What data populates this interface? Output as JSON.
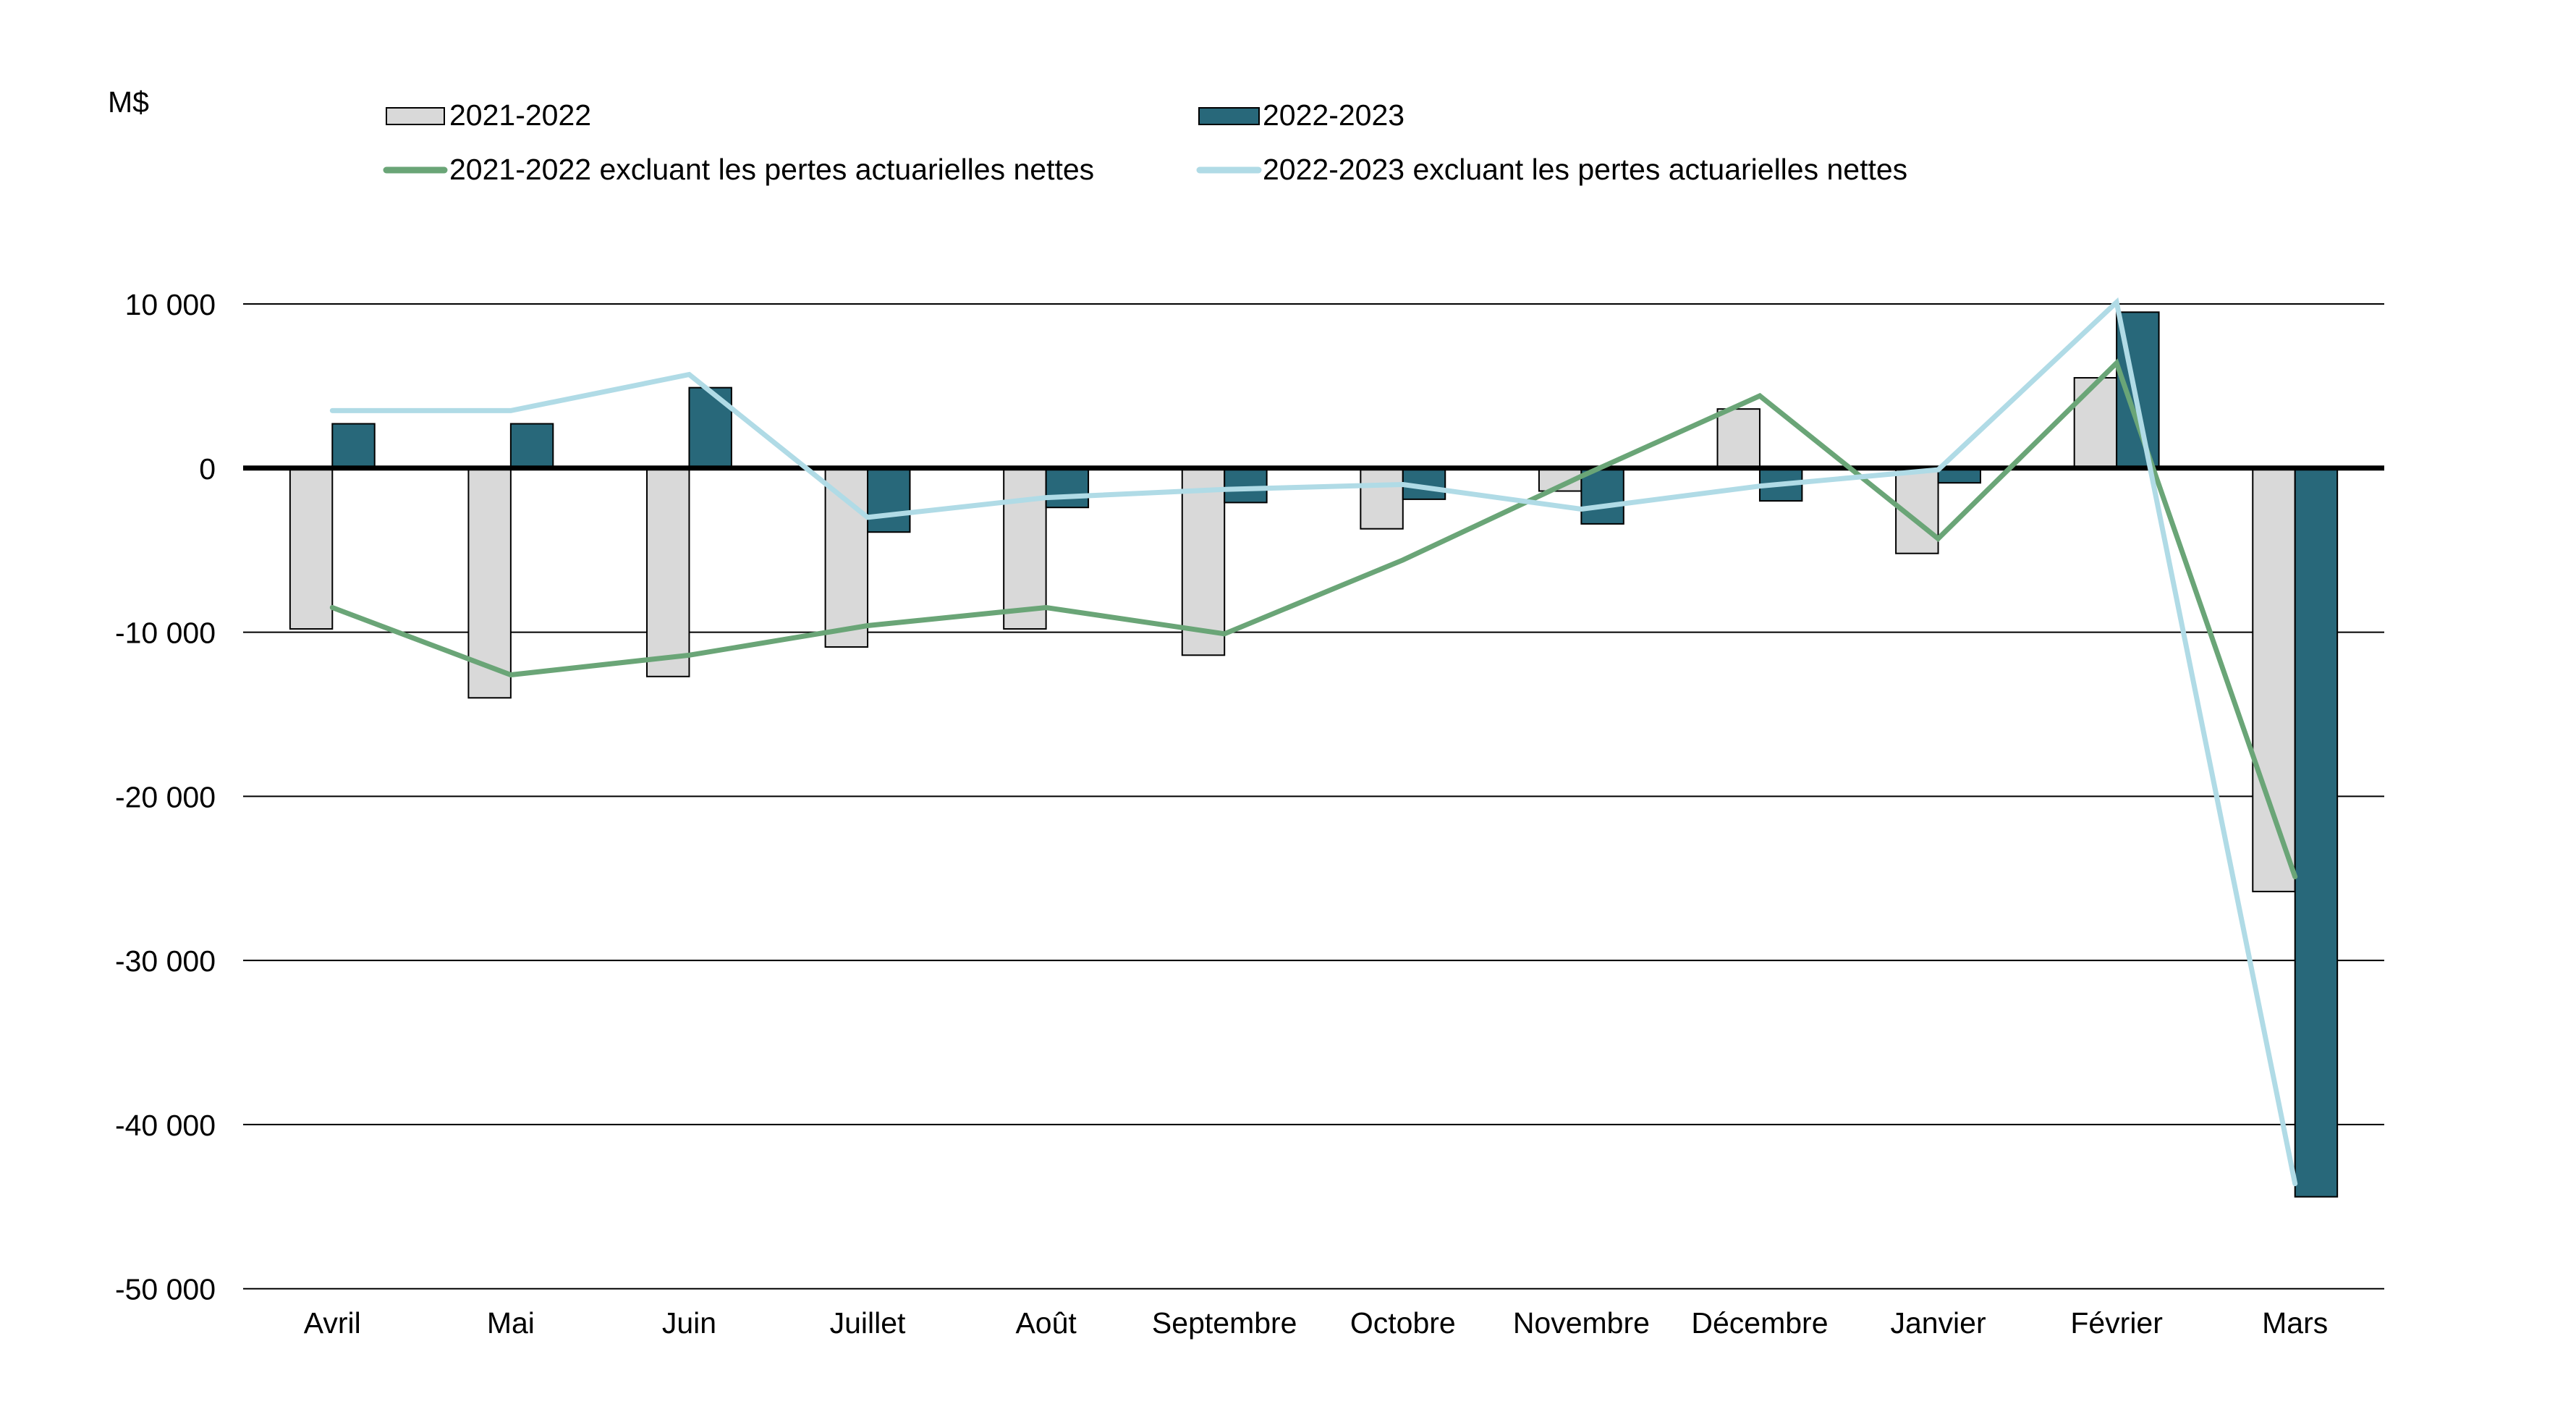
{
  "chart_data": {
    "type": "bar",
    "title": "",
    "xlabel": "",
    "ylabel": "M$",
    "ylim": [
      -50000,
      10000
    ],
    "yticks": [
      10000,
      0,
      -10000,
      -20000,
      -30000,
      -40000,
      -50000
    ],
    "ytick_labels": [
      "10 000",
      "0",
      "-10 000",
      "-20 000",
      "-30 000",
      "-40 000",
      "-50 000"
    ],
    "grid": true,
    "legend_position": "top",
    "categories": [
      "Avril",
      "Mai",
      "Juin",
      "Juillet",
      "Août",
      "Septembre",
      "Octobre",
      "Novembre",
      "Décembre",
      "Janvier",
      "Février",
      "Mars"
    ],
    "series": [
      {
        "name": "2021-2022",
        "type": "bar",
        "color": "#D9D9D9",
        "values": [
          -9800,
          -14000,
          -12700,
          -10900,
          -9800,
          -11400,
          -3700,
          -1400,
          3600,
          -5200,
          5500,
          -25800
        ]
      },
      {
        "name": "2022-2023",
        "type": "bar",
        "color": "#28687A",
        "values": [
          2700,
          2700,
          4900,
          -3900,
          -2400,
          -2100,
          -1900,
          -3400,
          -2000,
          -900,
          9500,
          -44400
        ]
      },
      {
        "name": "2021-2022 excluant les pertes actuarielles nettes",
        "type": "line",
        "color": "#6AA577",
        "values": [
          -8500,
          -12600,
          -11400,
          -9600,
          -8500,
          -10100,
          -5600,
          -500,
          4400,
          -4300,
          6400,
          -24900
        ]
      },
      {
        "name": "2022-2023 excluant les pertes actuarielles nettes",
        "type": "line",
        "color": "#B0DBE6",
        "values": [
          3500,
          3500,
          5700,
          -3000,
          -1800,
          -1300,
          -1000,
          -2500,
          -1100,
          -100,
          10100,
          -43600
        ]
      }
    ]
  }
}
